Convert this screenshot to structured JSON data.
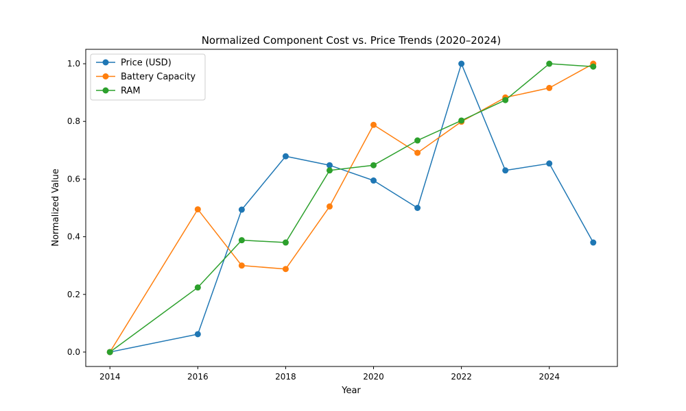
{
  "chart_data": {
    "type": "line",
    "title": "Normalized Component Cost vs. Price Trends (2020–2024)",
    "xlabel": "Year",
    "ylabel": "Normalized Value",
    "xlim": [
      2013.45,
      2025.55
    ],
    "ylim": [
      -0.05,
      1.05
    ],
    "xticks": [
      2014,
      2016,
      2018,
      2020,
      2022,
      2024
    ],
    "yticks": [
      0.0,
      0.2,
      0.4,
      0.6,
      0.8,
      1.0
    ],
    "ytick_labels": [
      "0.0",
      "0.2",
      "0.4",
      "0.6",
      "0.8",
      "1.0"
    ],
    "grid": false,
    "legend_position": "top-left",
    "x": [
      2014,
      2016,
      2017,
      2018,
      2019,
      2020,
      2021,
      2022,
      2023,
      2024,
      2025
    ],
    "series": [
      {
        "name": "Price (USD)",
        "color": "#1f77b4",
        "values": [
          0.0,
          0.062,
          0.494,
          0.679,
          0.648,
          0.595,
          0.5,
          1.0,
          0.63,
          0.654,
          0.38
        ]
      },
      {
        "name": "Battery Capacity",
        "color": "#ff7f0e",
        "values": [
          0.0,
          0.495,
          0.3,
          0.288,
          0.505,
          0.788,
          0.691,
          0.799,
          0.883,
          0.916,
          1.0
        ]
      },
      {
        "name": "RAM",
        "color": "#2ca02c",
        "values": [
          0.0,
          0.224,
          0.388,
          0.38,
          0.63,
          0.648,
          0.734,
          0.803,
          0.874,
          1.0,
          0.99
        ]
      }
    ]
  }
}
